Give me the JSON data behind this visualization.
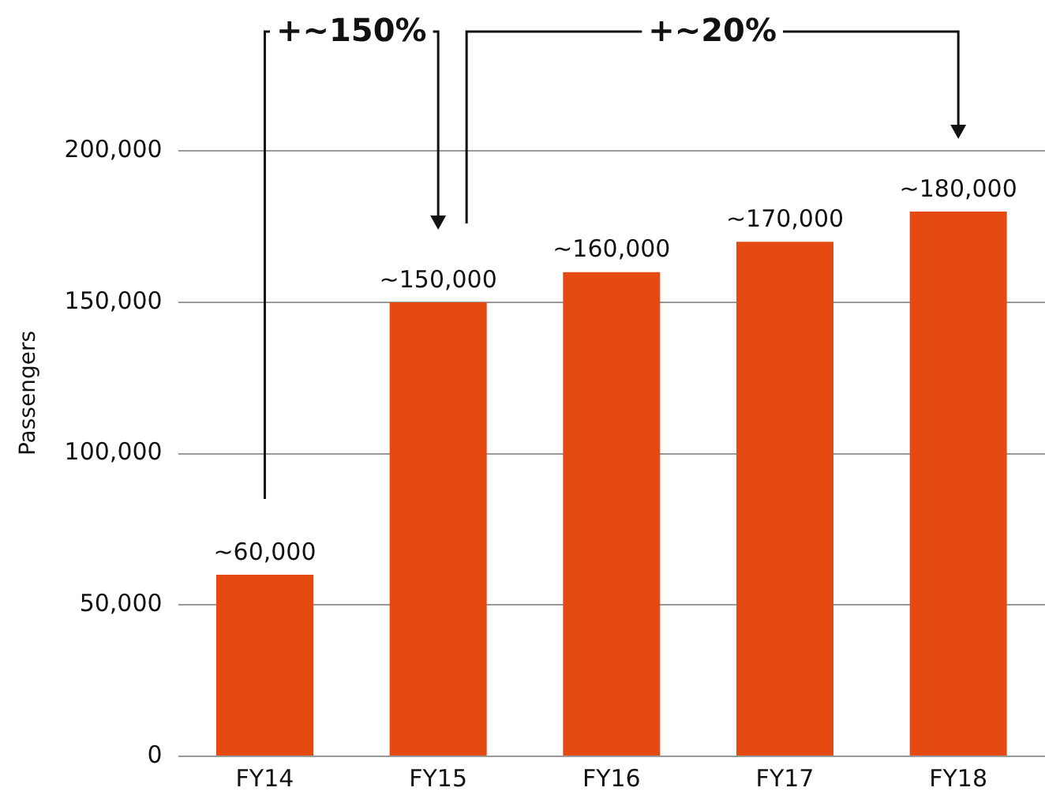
{
  "chart_data": {
    "type": "bar",
    "ylabel": "Passengers",
    "categories": [
      "FY14",
      "FY15",
      "FY16",
      "FY17",
      "FY18"
    ],
    "values": [
      60000,
      150000,
      160000,
      170000,
      180000
    ],
    "color": "#e54a13",
    "value_labels": [
      "~60,000",
      "~150,000",
      "~160,000",
      "~170,000",
      "~180,000"
    ],
    "ylim": [
      0,
      240000
    ],
    "yticks": [
      {
        "value": 0,
        "label": "0"
      },
      {
        "value": 50000,
        "label": "50,000"
      },
      {
        "value": 100000,
        "label": "100,000"
      },
      {
        "value": 150000,
        "label": "150,000"
      },
      {
        "value": 200000,
        "label": "200,000"
      }
    ],
    "grid": "y",
    "legend": false,
    "annotations": [
      "+~150%",
      "+~20%"
    ]
  }
}
